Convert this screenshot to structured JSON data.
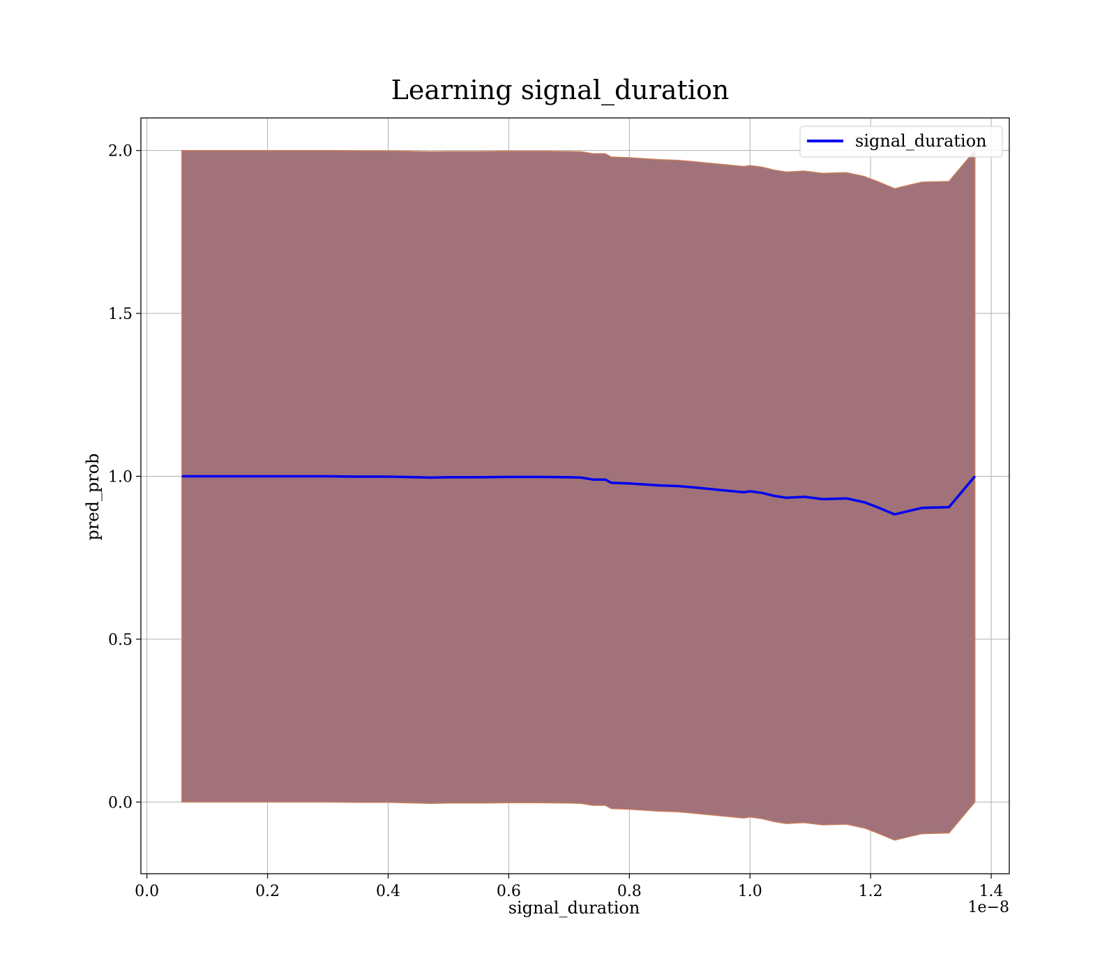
{
  "chart_data": {
    "type": "line",
    "title": "Learning signal_duration",
    "xlabel": "signal_duration",
    "ylabel": "pred_prob",
    "x_offset_label": "1e−8",
    "x_ticks": [
      "0.0",
      "0.2",
      "0.4",
      "0.6",
      "0.8",
      "1.0",
      "1.2",
      "1.4"
    ],
    "y_ticks": [
      "0.0",
      "0.5",
      "1.0",
      "1.5",
      "2.0"
    ],
    "xlim": [
      -0.01,
      1.43
    ],
    "ylim": [
      -0.22,
      2.1
    ],
    "grid": true,
    "legend_position": "top-right",
    "colors": {
      "line": "#0000ee",
      "band_fill": "#a1727a",
      "band_edge": "#c77e5c"
    },
    "series": [
      {
        "name": "signal_duration",
        "x": [
          0.058,
          0.1,
          0.15,
          0.2,
          0.25,
          0.3,
          0.35,
          0.4,
          0.45,
          0.47,
          0.5,
          0.55,
          0.6,
          0.65,
          0.7,
          0.72,
          0.74,
          0.76,
          0.77,
          0.8,
          0.85,
          0.88,
          0.9,
          0.95,
          0.99,
          1.0,
          1.02,
          1.04,
          1.06,
          1.09,
          1.12,
          1.16,
          1.19,
          1.21,
          1.24,
          1.26,
          1.285,
          1.33,
          1.373
        ],
        "y": [
          1.0,
          1.0,
          1.0,
          1.0,
          1.0,
          1.0,
          0.999,
          0.999,
          0.997,
          0.996,
          0.997,
          0.997,
          0.998,
          0.998,
          0.997,
          0.996,
          0.99,
          0.99,
          0.98,
          0.978,
          0.972,
          0.97,
          0.967,
          0.958,
          0.951,
          0.954,
          0.949,
          0.94,
          0.934,
          0.937,
          0.93,
          0.932,
          0.92,
          0.906,
          0.883,
          0.892,
          0.903,
          0.905,
          1.0
        ]
      }
    ],
    "band": {
      "upper": [
        2.0,
        2.0,
        2.0,
        2.0,
        2.0,
        2.0,
        1.999,
        1.999,
        1.997,
        1.996,
        1.997,
        1.997,
        1.998,
        1.998,
        1.997,
        1.996,
        1.99,
        1.99,
        1.98,
        1.978,
        1.972,
        1.97,
        1.967,
        1.958,
        1.951,
        1.954,
        1.949,
        1.94,
        1.934,
        1.937,
        1.93,
        1.932,
        1.92,
        1.906,
        1.883,
        1.892,
        1.903,
        1.905,
        2.0
      ],
      "lower": [
        0.0,
        0.0,
        0.0,
        0.0,
        0.0,
        0.0,
        -0.001,
        -0.001,
        -0.003,
        -0.004,
        -0.003,
        -0.003,
        -0.002,
        -0.002,
        -0.003,
        -0.004,
        -0.01,
        -0.01,
        -0.02,
        -0.022,
        -0.028,
        -0.03,
        -0.033,
        -0.042,
        -0.049,
        -0.046,
        -0.051,
        -0.06,
        -0.066,
        -0.063,
        -0.07,
        -0.068,
        -0.08,
        -0.094,
        -0.117,
        -0.108,
        -0.097,
        -0.095,
        0.0
      ]
    }
  }
}
